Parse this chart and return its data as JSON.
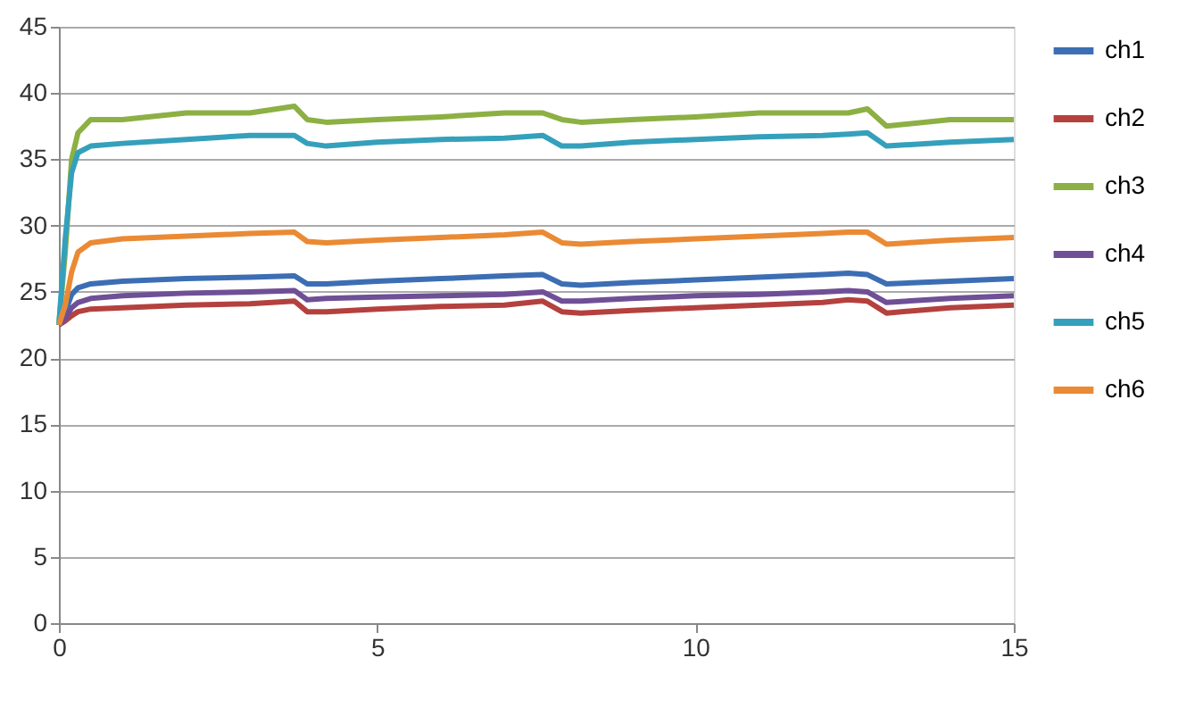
{
  "chart_data": {
    "type": "line",
    "x": [
      0,
      0.1,
      0.2,
      0.3,
      0.5,
      1,
      2,
      3,
      3.7,
      3.9,
      4.2,
      5,
      6,
      7,
      7.6,
      7.9,
      8.2,
      9,
      10,
      11,
      12,
      12.4,
      12.7,
      13,
      14,
      15
    ],
    "xlim": [
      0,
      15
    ],
    "xticks": [
      0,
      5,
      10,
      15
    ],
    "ylim": [
      0,
      45
    ],
    "yticks": [
      0,
      5,
      10,
      15,
      20,
      25,
      30,
      35,
      40,
      45
    ],
    "grid": "y",
    "legend": "right",
    "marker": "none",
    "line_style": "solid",
    "series": [
      {
        "name": "ch1",
        "color": "#3c6eb4",
        "values": [
          22.5,
          23.5,
          24.8,
          25.3,
          25.6,
          25.8,
          26,
          26.1,
          26.2,
          25.6,
          25.6,
          25.8,
          26,
          26.2,
          26.3,
          25.6,
          25.5,
          25.7,
          25.9,
          26.1,
          26.3,
          26.4,
          26.3,
          25.6,
          25.8,
          26
        ]
      },
      {
        "name": "ch2",
        "color": "#b4413e",
        "values": [
          22.5,
          22.8,
          23.2,
          23.5,
          23.7,
          23.8,
          24,
          24.1,
          24.3,
          23.5,
          23.5,
          23.7,
          23.9,
          24,
          24.3,
          23.5,
          23.4,
          23.6,
          23.8,
          24,
          24.2,
          24.4,
          24.3,
          23.4,
          23.8,
          24
        ]
      },
      {
        "name": "ch3",
        "color": "#8cb043",
        "values": [
          22.5,
          28,
          35,
          37,
          38,
          38,
          38.5,
          38.5,
          39,
          38,
          37.8,
          38,
          38.2,
          38.5,
          38.5,
          38,
          37.8,
          38,
          38.2,
          38.5,
          38.5,
          38.5,
          38.8,
          37.5,
          38,
          38
        ]
      },
      {
        "name": "ch4",
        "color": "#6f4f96",
        "values": [
          22.5,
          23,
          23.8,
          24.2,
          24.5,
          24.7,
          24.9,
          25,
          25.1,
          24.4,
          24.5,
          24.6,
          24.7,
          24.8,
          25,
          24.3,
          24.3,
          24.5,
          24.7,
          24.8,
          25,
          25.1,
          25,
          24.2,
          24.5,
          24.7
        ]
      },
      {
        "name": "ch5",
        "color": "#35a0bb",
        "values": [
          22.5,
          29,
          34,
          35.5,
          36,
          36.2,
          36.5,
          36.8,
          36.8,
          36.2,
          36,
          36.3,
          36.5,
          36.6,
          36.8,
          36,
          36,
          36.3,
          36.5,
          36.7,
          36.8,
          36.9,
          37,
          36,
          36.3,
          36.5
        ]
      },
      {
        "name": "ch6",
        "color": "#ea8a34",
        "values": [
          22.5,
          24,
          26.5,
          28,
          28.7,
          29,
          29.2,
          29.4,
          29.5,
          28.8,
          28.7,
          28.9,
          29.1,
          29.3,
          29.5,
          28.7,
          28.6,
          28.8,
          29,
          29.2,
          29.4,
          29.5,
          29.5,
          28.6,
          28.9,
          29.1
        ]
      }
    ]
  }
}
